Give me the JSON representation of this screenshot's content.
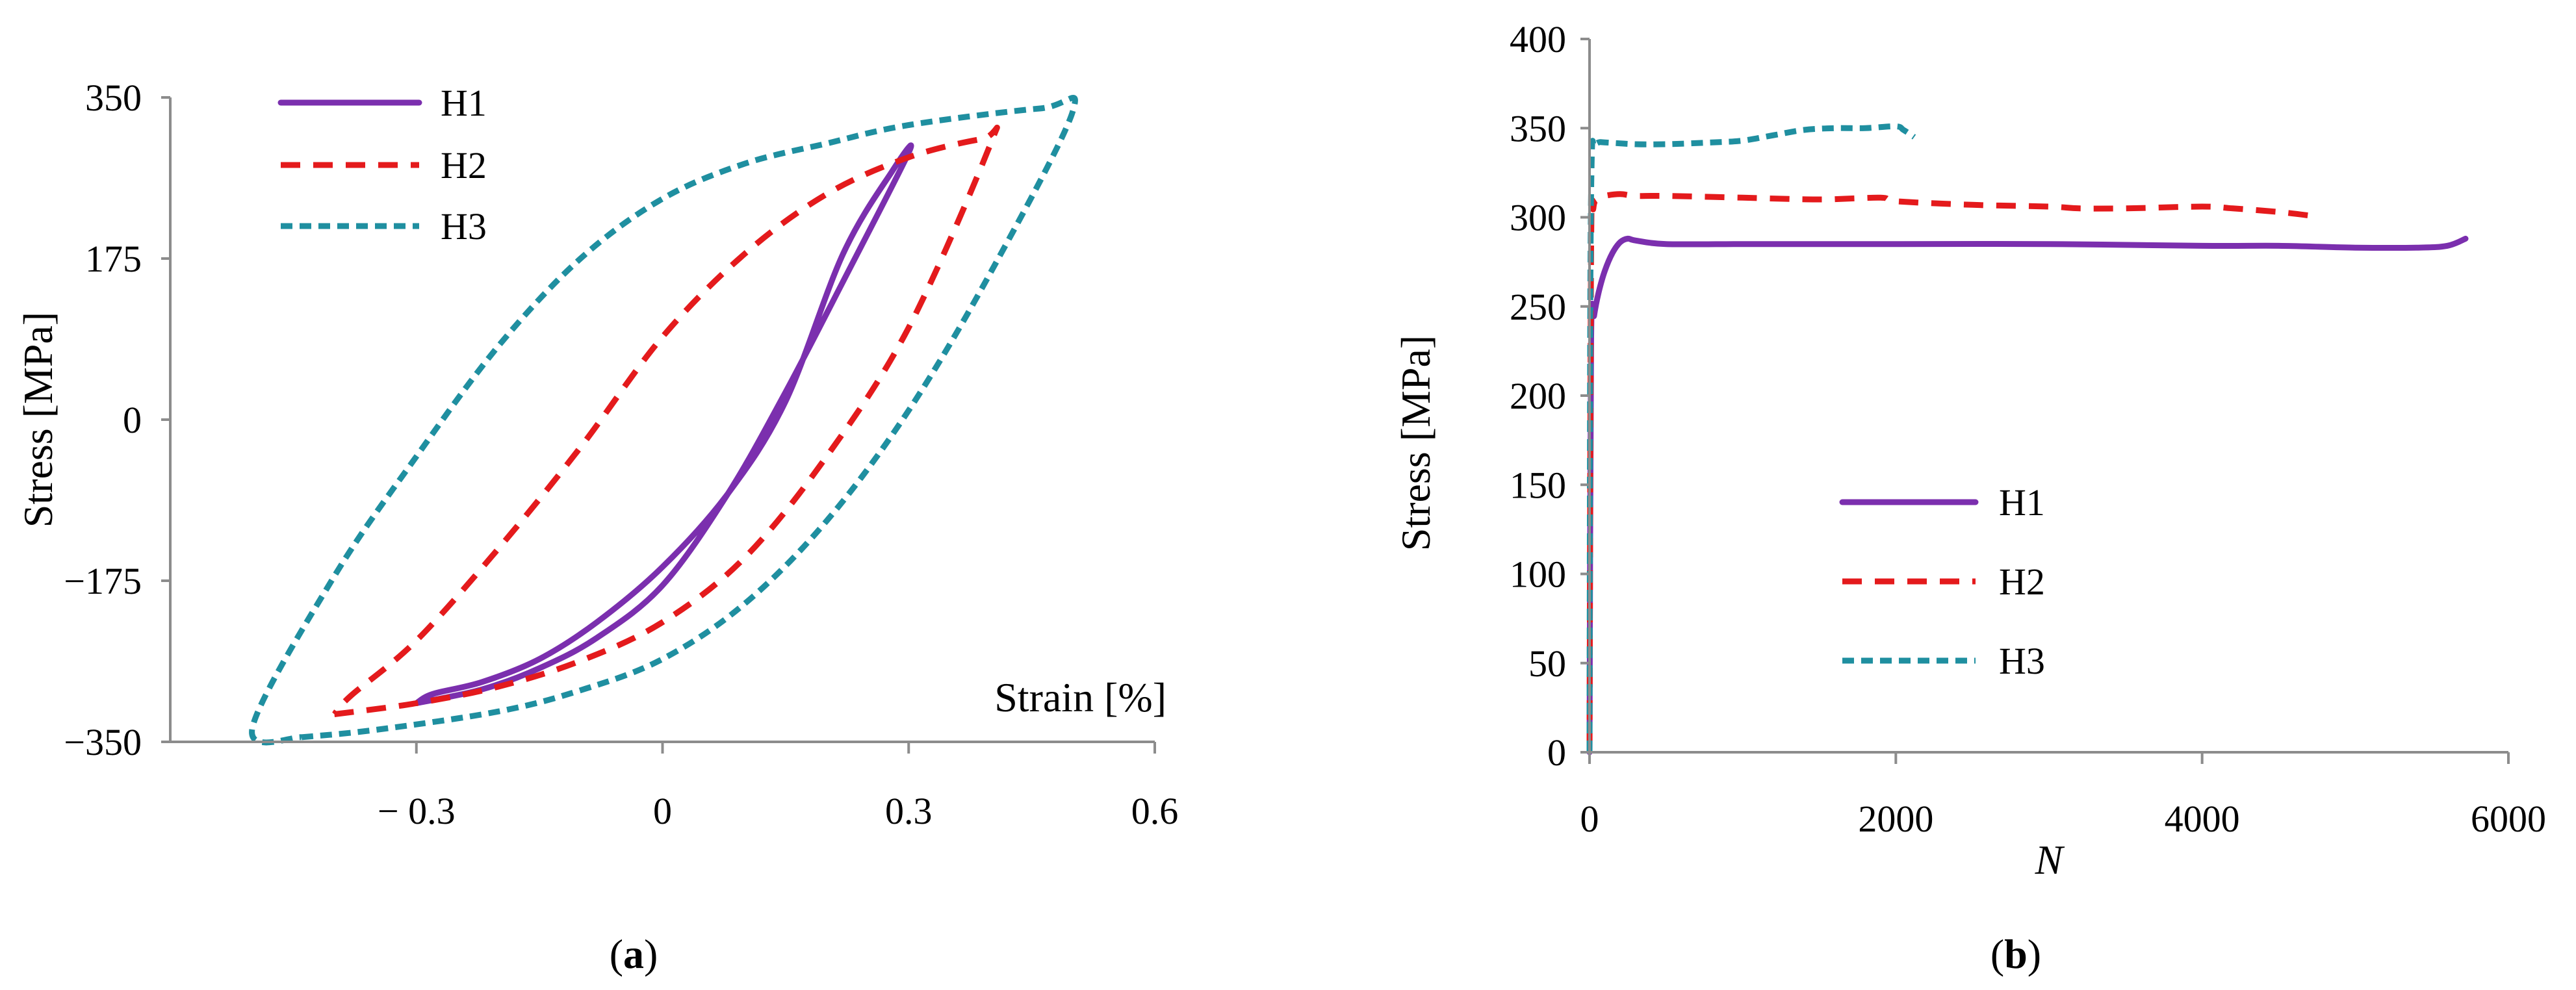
{
  "colors": {
    "H1": "#7b2fae",
    "H2": "#e41a1c",
    "H3": "#1f8fa0",
    "axis": "#8c8c8c"
  },
  "chart_data": [
    {
      "type": "line",
      "panel": "(a)",
      "caption": {
        "open": "(",
        "letter": "a",
        "close": ")"
      },
      "xlabel": "Strain [%]",
      "ylabel": "Stress [MPa]",
      "xlim": [
        -0.6,
        0.6
      ],
      "ylim": [
        -350,
        350
      ],
      "xticks": [
        -0.3,
        0,
        0.3,
        0.6
      ],
      "xtick_labels": [
        "− 0.3",
        "0",
        "0.3",
        "0.6"
      ],
      "yticks": [
        350,
        175,
        0,
        -175,
        -350
      ],
      "ytick_labels": [
        "350",
        "175",
        "0",
        "−175",
        "−350"
      ],
      "legend_position": "top-left",
      "series": [
        {
          "name": "H1",
          "style": "solid",
          "x": [
            -0.3,
            -0.22,
            -0.15,
            -0.08,
            0.0,
            0.08,
            0.15,
            0.22,
            0.3,
            0.28,
            0.22,
            0.15,
            0.08,
            0.0,
            -0.08,
            -0.15,
            -0.22,
            -0.28,
            -0.3
          ],
          "y": [
            -308,
            -293,
            -270,
            -237,
            -180,
            -80,
            30,
            150,
            290,
            270,
            180,
            20,
            -80,
            -160,
            -220,
            -260,
            -285,
            -298,
            -308
          ]
        },
        {
          "name": "H2",
          "style": "dashed",
          "x": [
            -0.4,
            -0.3,
            -0.2,
            -0.1,
            0.0,
            0.1,
            0.2,
            0.3,
            0.4,
            0.39,
            0.3,
            0.2,
            0.1,
            0.0,
            -0.1,
            -0.2,
            -0.3,
            -0.38,
            -0.4
          ],
          "y": [
            -320,
            -308,
            -290,
            -262,
            -220,
            -150,
            -40,
            100,
            300,
            305,
            285,
            245,
            180,
            90,
            -30,
            -140,
            -240,
            -300,
            -320
          ]
        },
        {
          "name": "H3",
          "style": "dotted",
          "x": [
            -0.44,
            -0.35,
            -0.2,
            -0.1,
            0.0,
            0.1,
            0.2,
            0.3,
            0.4,
            0.5,
            0.46,
            0.3,
            0.2,
            0.1,
            0.0,
            -0.1,
            -0.2,
            -0.3,
            -0.4,
            -0.5,
            -0.44
          ],
          "y": [
            -345,
            -337,
            -317,
            -294,
            -260,
            -200,
            -110,
            10,
            160,
            335,
            338,
            320,
            300,
            278,
            240,
            175,
            80,
            -40,
            -170,
            -335,
            -345
          ]
        }
      ]
    },
    {
      "type": "line",
      "panel": "(b)",
      "caption": {
        "open": "(",
        "letter": "b",
        "close": ")"
      },
      "xlabel": "N",
      "ylabel": "Stress [MPa]",
      "xlim": [
        0,
        6000
      ],
      "ylim": [
        0,
        400
      ],
      "xticks": [
        0,
        2000,
        4000,
        6000
      ],
      "xtick_labels": [
        "0",
        "2000",
        "4000",
        "6000"
      ],
      "yticks": [
        0,
        50,
        100,
        150,
        200,
        250,
        300,
        350,
        400
      ],
      "ytick_labels": [
        "0",
        "50",
        "100",
        "150",
        "200",
        "250",
        "300",
        "350",
        "400"
      ],
      "legend_position": "center-left",
      "series": [
        {
          "name": "H1",
          "style": "solid",
          "x": [
            0,
            10,
            30,
            60,
            100,
            150,
            200,
            250,
            300,
            500,
            1000,
            1500,
            2000,
            3000,
            4000,
            4500,
            5000,
            5400,
            5600,
            5720
          ],
          "y": [
            0,
            230,
            245,
            258,
            270,
            280,
            286,
            288,
            287,
            285,
            285,
            285,
            285,
            285,
            284,
            284,
            283,
            283,
            284,
            288
          ]
        },
        {
          "name": "H2",
          "style": "dashed",
          "x": [
            0,
            10,
            25,
            50,
            100,
            200,
            300,
            500,
            1000,
            1500,
            1900,
            2000,
            2500,
            3000,
            3200,
            3500,
            4000,
            4200,
            4500,
            4700
          ],
          "y": [
            0,
            280,
            305,
            310,
            312,
            313,
            312,
            312,
            311,
            310,
            311,
            309,
            307,
            306,
            305,
            305,
            306,
            305,
            303,
            301
          ]
        },
        {
          "name": "H3",
          "style": "dotted",
          "x": [
            0,
            5,
            15,
            30,
            60,
            100,
            300,
            500,
            800,
            1000,
            1200,
            1400,
            1600,
            1800,
            2000,
            2050,
            2120
          ],
          "y": [
            0,
            250,
            335,
            340,
            342,
            342,
            341,
            341,
            342,
            343,
            346,
            349,
            350,
            350,
            351,
            349,
            345
          ]
        }
      ]
    }
  ]
}
